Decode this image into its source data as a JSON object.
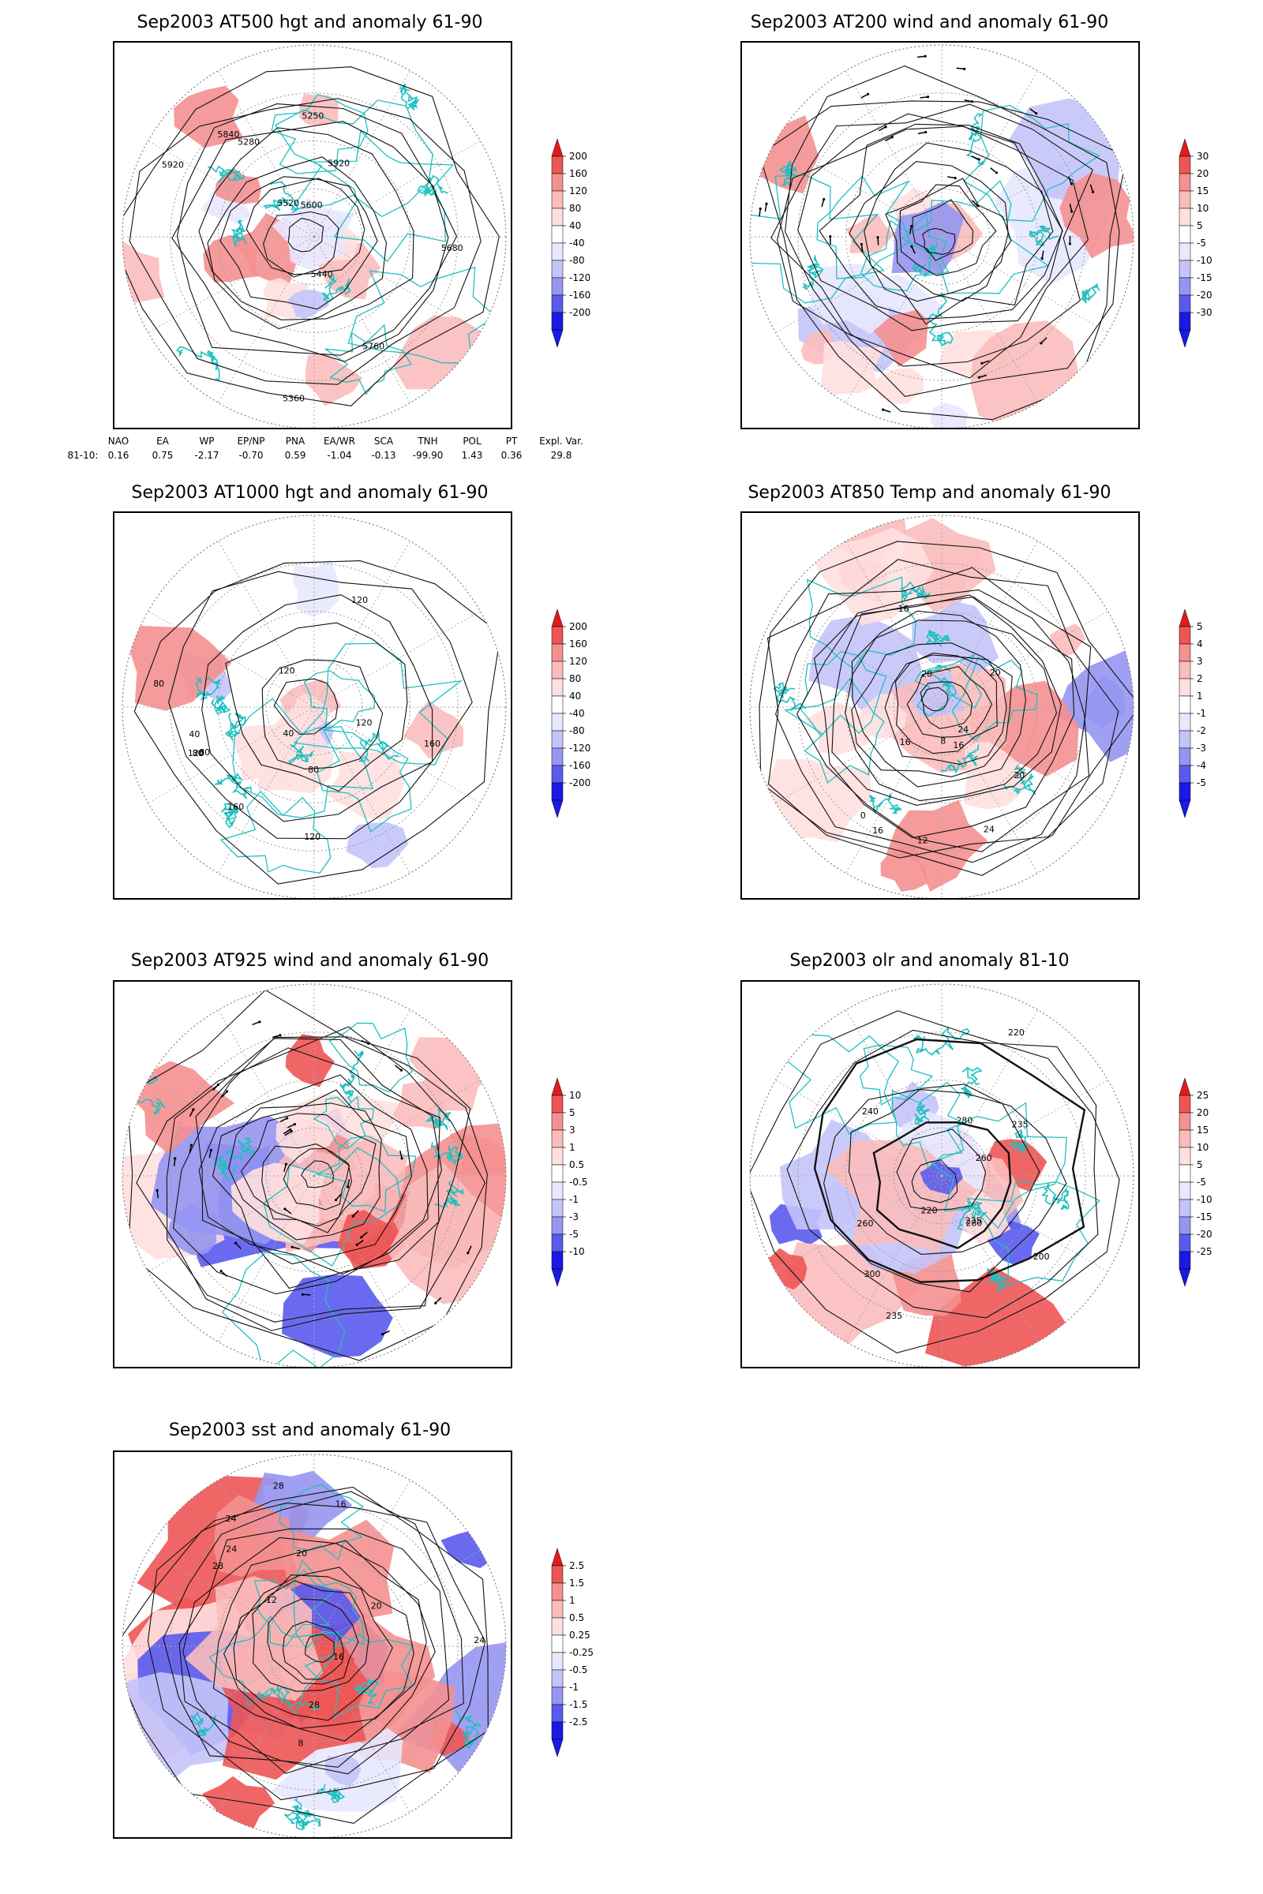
{
  "panels": [
    {
      "id": "p1",
      "title": "Sep2003 AT500 hgt and anomaly 61-90",
      "colorbar": [
        "200",
        "160",
        "120",
        "80",
        "40",
        "-40",
        "-80",
        "-120",
        "-160",
        "-200"
      ],
      "contour_labels": [
        "5920",
        "5840",
        "5760",
        "5680",
        "5600",
        "5520",
        "5440",
        "5360",
        "5280",
        "5250",
        "5920"
      ]
    },
    {
      "id": "p2",
      "title": "Sep2003 AT200 wind and anomaly 61-90",
      "colorbar": [
        "30",
        "20",
        "15",
        "10",
        "5",
        "-5",
        "-10",
        "-15",
        "-20",
        "-30"
      ],
      "contour_labels": []
    },
    {
      "id": "p3",
      "title": "Sep2003 AT1000 hgt and anomaly 61-90",
      "colorbar": [
        "200",
        "160",
        "120",
        "80",
        "40",
        "-40",
        "-80",
        "-120",
        "-160",
        "-200"
      ],
      "contour_labels": [
        "120",
        "80",
        "120",
        "160",
        "80",
        "40",
        "120",
        "160",
        "40",
        "120",
        "120",
        "80",
        "80"
      ]
    },
    {
      "id": "p4",
      "title": "Sep2003 AT850 Temp and anomaly 61-90",
      "colorbar": [
        "5",
        "4",
        "3",
        "2",
        "1",
        "-1",
        "-2",
        "-3",
        "-4",
        "-5"
      ],
      "contour_labels": [
        "16",
        "12",
        "16",
        "20",
        "0",
        "8",
        "16",
        "24",
        "28",
        "20",
        "24",
        "16"
      ]
    },
    {
      "id": "p5",
      "title": "Sep2003 AT925 wind and anomaly 61-90",
      "colorbar": [
        "10",
        "5",
        "3",
        "1",
        "0.5",
        "-0.5",
        "-1",
        "-3",
        "-5",
        "-10"
      ],
      "contour_labels": []
    },
    {
      "id": "p6",
      "title": "Sep2003 olr and anomaly 81-10",
      "colorbar": [
        "25",
        "20",
        "15",
        "10",
        "5",
        "-5",
        "-10",
        "-15",
        "-20",
        "-25"
      ],
      "contour_labels": [
        "235",
        "260",
        "220",
        "200",
        "280",
        "240",
        "235",
        "300",
        "260",
        "280",
        "220",
        "235"
      ]
    },
    {
      "id": "p7",
      "title": "Sep2003 sst and anomaly 61-90",
      "colorbar": [
        "2.5",
        "1.5",
        "1",
        "0.5",
        "0.25",
        "-0.25",
        "-0.5",
        "-1",
        "-1.5",
        "-2.5"
      ],
      "contour_labels": [
        "28",
        "24",
        "20",
        "16",
        "12",
        "8",
        "24",
        "28",
        "28",
        "16",
        "20",
        "24"
      ]
    }
  ],
  "indices": {
    "headers": [
      "NAO",
      "EA",
      "WP",
      "EP/NP",
      "PNA",
      "EA/WR",
      "SCA",
      "TNH",
      "POL",
      "PT",
      "Expl. Var."
    ],
    "row_label": "81-10:",
    "values": [
      "0.16",
      "0.75",
      "-2.17",
      "-0.70",
      "0.59",
      "-1.04",
      "-0.13",
      "-99.90",
      "1.43",
      "0.36",
      "29.8"
    ]
  },
  "colors": {
    "coast": "#20c0c0",
    "warm": [
      "#ffe0e0",
      "#fbbcbc",
      "#f59090",
      "#ee5555",
      "#e41a1a"
    ],
    "cool": [
      "#e8e8ff",
      "#c4c4fa",
      "#9696f2",
      "#5a5aee",
      "#1a1ae4"
    ]
  }
}
